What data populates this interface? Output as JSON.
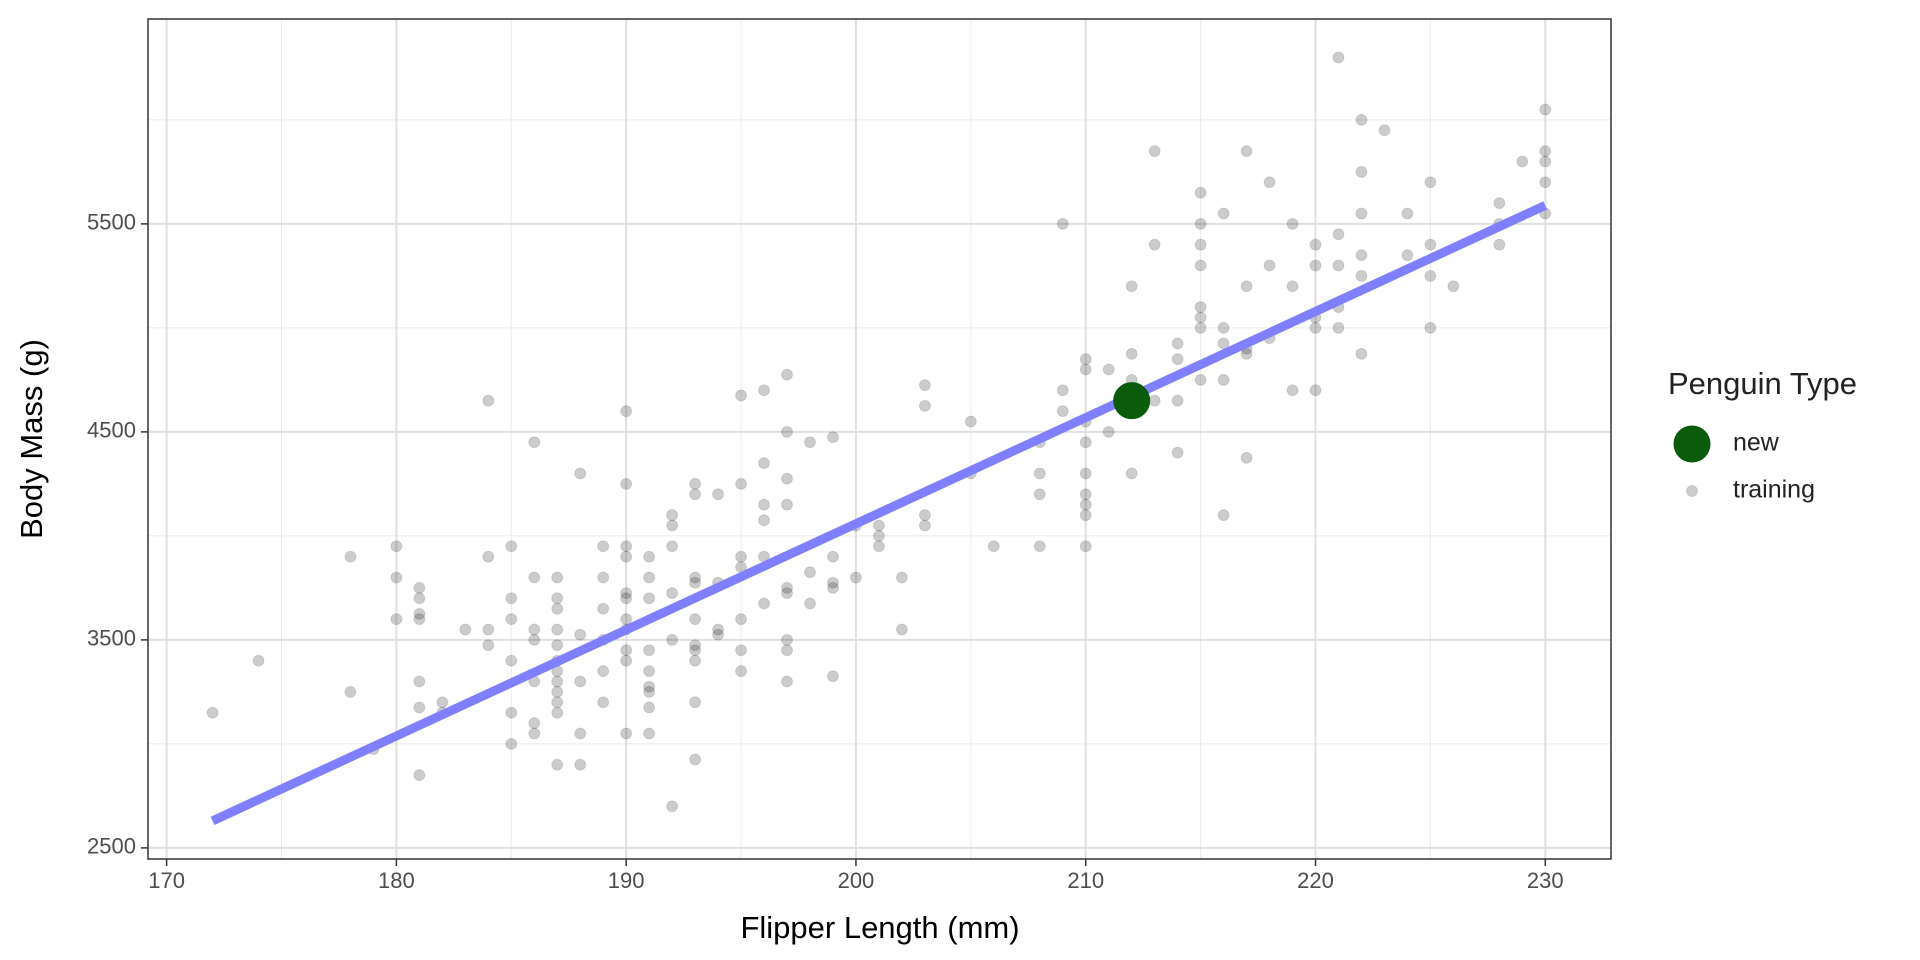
{
  "chart_data": {
    "type": "scatter",
    "x_label": "Flipper Length (mm)",
    "y_label": "Body Mass (g)",
    "legend_title": "Penguin Type",
    "legend": "right",
    "xlim": [
      169.19,
      232.86
    ],
    "ylim": [
      2446.6,
      6485
    ],
    "xticks": [
      170,
      180,
      190,
      200,
      210,
      220,
      230
    ],
    "yticks": [
      2500,
      3500,
      4500,
      5500
    ],
    "x_minor_grid": [
      175,
      185,
      195,
      205,
      215,
      225
    ],
    "y_minor_grid": [
      3000,
      4000,
      5000,
      6000
    ],
    "grid": true,
    "line": {
      "x": [
        172,
        230
      ],
      "values": [
        2630,
        5589
      ],
      "color": "#7f7fff"
    },
    "series": [
      {
        "name": "new",
        "color": "#0a5c0a",
        "x": [
          212
        ],
        "values": [
          4650
        ]
      },
      {
        "name": "training",
        "color": "#000000",
        "x": [
          172,
          174,
          178,
          178,
          179,
          180,
          180,
          180,
          181,
          181,
          181,
          181,
          181,
          181,
          181,
          182,
          182,
          183,
          184,
          184,
          184,
          184,
          185,
          185,
          185,
          185,
          185,
          185,
          186,
          186,
          186,
          186,
          186,
          186,
          186,
          187,
          187,
          187,
          187,
          187,
          187,
          187,
          187,
          187,
          187,
          187,
          187,
          188,
          188,
          188,
          188,
          188,
          189,
          189,
          189,
          189,
          189,
          189,
          190,
          190,
          190,
          190,
          190,
          190,
          190,
          190,
          190,
          190,
          190,
          191,
          191,
          191,
          191,
          191,
          191,
          191,
          191,
          191,
          192,
          192,
          192,
          192,
          192,
          192,
          193,
          193,
          193,
          193,
          193,
          193,
          193,
          193,
          193,
          193,
          194,
          194,
          194,
          194,
          195,
          195,
          195,
          195,
          195,
          195,
          195,
          196,
          196,
          196,
          196,
          196,
          196,
          197,
          197,
          197,
          197,
          197,
          197,
          197,
          197,
          197,
          198,
          198,
          198,
          199,
          199,
          199,
          199,
          199,
          200,
          200,
          201,
          201,
          201,
          202,
          202,
          203,
          203,
          203,
          203,
          205,
          205,
          206,
          208,
          208,
          208,
          208,
          209,
          209,
          209,
          210,
          210,
          210,
          210,
          210,
          210,
          210,
          210,
          210,
          211,
          211,
          212,
          212,
          212,
          212,
          212,
          213,
          213,
          213,
          214,
          214,
          214,
          214,
          215,
          215,
          215,
          215,
          215,
          215,
          215,
          215,
          216,
          216,
          216,
          216,
          216,
          217,
          217,
          217,
          217,
          217,
          218,
          218,
          218,
          219,
          219,
          219,
          220,
          220,
          220,
          220,
          220,
          221,
          221,
          221,
          221,
          221,
          222,
          222,
          222,
          222,
          222,
          222,
          223,
          224,
          224,
          225,
          225,
          225,
          225,
          226,
          228,
          228,
          228,
          229,
          230,
          230,
          230,
          230,
          230
        ],
        "values": [
          3150,
          3400,
          3900,
          3250,
          2975,
          3950,
          3800,
          3600,
          3750,
          3700,
          3625,
          3600,
          3300,
          3175,
          2850,
          3200,
          3150,
          3550,
          4650,
          3900,
          3550,
          3475,
          3950,
          3700,
          3600,
          3400,
          3150,
          3000,
          4450,
          3800,
          3550,
          3500,
          3300,
          3100,
          3050,
          3800,
          3700,
          3650,
          3550,
          3475,
          3400,
          3350,
          3300,
          3250,
          3200,
          3150,
          2900,
          4300,
          3525,
          3300,
          3050,
          2900,
          3950,
          3800,
          3650,
          3500,
          3350,
          3200,
          4600,
          4250,
          3950,
          3900,
          3725,
          3700,
          3600,
          3550,
          3450,
          3400,
          3050,
          3900,
          3800,
          3700,
          3450,
          3350,
          3275,
          3250,
          3175,
          3050,
          4100,
          4050,
          3950,
          3725,
          3500,
          2700,
          4250,
          4200,
          3800,
          3775,
          3600,
          3475,
          3450,
          3400,
          3200,
          2925,
          4200,
          3775,
          3550,
          3525,
          4675,
          4250,
          3900,
          3850,
          3600,
          3450,
          3350,
          4700,
          4350,
          4150,
          4075,
          3900,
          3675,
          4775,
          4500,
          4275,
          4150,
          3750,
          3725,
          3500,
          3450,
          3300,
          4450,
          3825,
          3675,
          4475,
          3900,
          3775,
          3750,
          3325,
          4050,
          3800,
          4050,
          4000,
          3950,
          3800,
          3550,
          4725,
          4625,
          4100,
          4050,
          4550,
          4300,
          3950,
          4450,
          4300,
          4200,
          3950,
          5500,
          4700,
          4600,
          4850,
          4800,
          4550,
          4450,
          4300,
          4200,
          4150,
          4100,
          3950,
          4800,
          4500,
          5200,
          4875,
          4750,
          4650,
          4300,
          5850,
          5400,
          4650,
          4925,
          4850,
          4650,
          4400,
          5650,
          5500,
          5400,
          5300,
          5100,
          5050,
          5000,
          4750,
          5550,
          5000,
          4925,
          4750,
          4100,
          5850,
          5200,
          4900,
          4875,
          4375,
          5700,
          5300,
          4950,
          5500,
          5200,
          4700,
          5400,
          5300,
          5050,
          5000,
          4700,
          6300,
          5450,
          5300,
          5100,
          5000,
          6000,
          5750,
          5550,
          5350,
          5250,
          4875,
          5950,
          5550,
          5350,
          5700,
          5400,
          5250,
          5000,
          5200,
          5600,
          5500,
          5400,
          5800,
          6050,
          5850,
          5800,
          5700,
          5550
        ]
      }
    ]
  }
}
